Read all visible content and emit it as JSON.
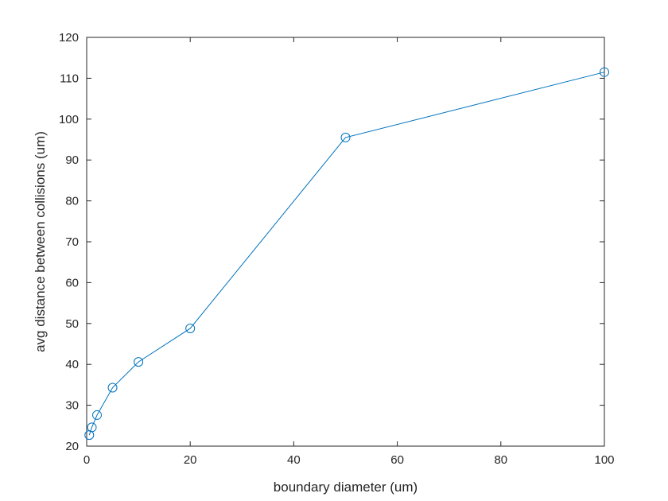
{
  "chart_data": {
    "type": "line",
    "xlabel": "boundary diameter (um)",
    "ylabel": "avg distance between collisions (um)",
    "xlim": [
      0,
      100
    ],
    "ylim": [
      20,
      120
    ],
    "xticks": [
      0,
      20,
      40,
      60,
      80,
      100
    ],
    "yticks": [
      20,
      30,
      40,
      50,
      60,
      70,
      80,
      90,
      100,
      110,
      120
    ],
    "grid": false,
    "marker": "circle",
    "line_color": "#0072bd",
    "series": [
      {
        "x": [
          0.5,
          1,
          2,
          5,
          10,
          20,
          50,
          100
        ],
        "y": [
          22.7,
          24.6,
          27.6,
          34.3,
          40.6,
          48.8,
          95.5,
          111.5
        ]
      }
    ]
  }
}
